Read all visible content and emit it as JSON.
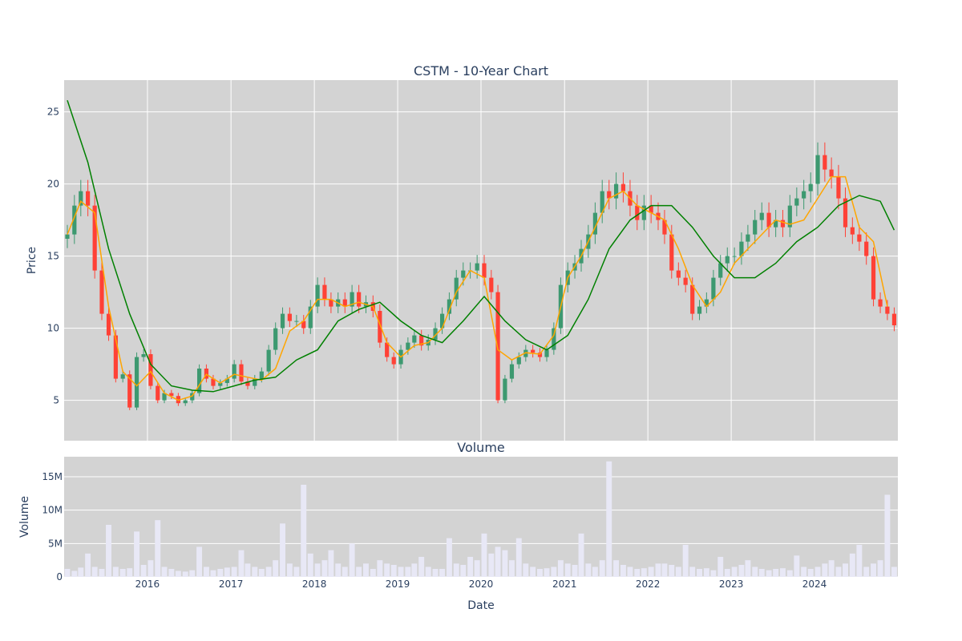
{
  "chart_data": [
    {
      "type": "candlestick",
      "title": "CSTM - 10-Year Chart",
      "ylabel": "Price",
      "ylim": [
        2.2,
        27.2
      ],
      "xlim": [
        "2015-01-01",
        "2024-12-31"
      ],
      "y_ticks": [
        5,
        10,
        15,
        20,
        25
      ],
      "grid": true,
      "background": "#d3d3d3",
      "colors": {
        "up": "#3d9970",
        "down": "#ff4136",
        "ma_short": "#ffa500",
        "ma_long": "#008000"
      },
      "series": [
        {
          "kind": "close",
          "x": [
            "2015-01",
            "2015-02",
            "2015-03",
            "2015-04",
            "2015-05",
            "2015-06",
            "2015-07",
            "2015-08",
            "2015-09",
            "2015-10",
            "2015-11",
            "2015-12",
            "2016-01",
            "2016-02",
            "2016-03",
            "2016-04",
            "2016-05",
            "2016-06",
            "2016-07",
            "2016-08",
            "2016-09",
            "2016-10",
            "2016-11",
            "2016-12",
            "2017-01",
            "2017-02",
            "2017-03",
            "2017-04",
            "2017-05",
            "2017-06",
            "2017-07",
            "2017-08",
            "2017-09",
            "2017-10",
            "2017-11",
            "2017-12",
            "2018-01",
            "2018-02",
            "2018-03",
            "2018-04",
            "2018-05",
            "2018-06",
            "2018-07",
            "2018-08",
            "2018-09",
            "2018-10",
            "2018-11",
            "2018-12",
            "2019-01",
            "2019-02",
            "2019-03",
            "2019-04",
            "2019-05",
            "2019-06",
            "2019-07",
            "2019-08",
            "2019-09",
            "2019-10",
            "2019-11",
            "2019-12",
            "2020-01",
            "2020-02",
            "2020-03",
            "2020-04",
            "2020-05",
            "2020-06",
            "2020-07",
            "2020-08",
            "2020-09",
            "2020-10",
            "2020-11",
            "2020-12",
            "2021-01",
            "2021-02",
            "2021-03",
            "2021-04",
            "2021-05",
            "2021-06",
            "2021-07",
            "2021-08",
            "2021-09",
            "2021-10",
            "2021-11",
            "2021-12",
            "2022-01",
            "2022-02",
            "2022-03",
            "2022-04",
            "2022-05",
            "2022-06",
            "2022-07",
            "2022-08",
            "2022-09",
            "2022-10",
            "2022-11",
            "2022-12",
            "2023-01",
            "2023-02",
            "2023-03",
            "2023-04",
            "2023-05",
            "2023-06",
            "2023-07",
            "2023-08",
            "2023-09",
            "2023-10",
            "2023-11",
            "2023-12",
            "2024-01",
            "2024-02",
            "2024-03",
            "2024-04",
            "2024-05",
            "2024-06",
            "2024-07",
            "2024-08",
            "2024-09",
            "2024-10",
            "2024-11",
            "2024-12"
          ],
          "values": [
            16.5,
            18.5,
            19.5,
            18.5,
            14.0,
            11.0,
            9.5,
            6.5,
            6.8,
            4.5,
            8.0,
            8.2,
            6.0,
            5.0,
            5.5,
            5.3,
            4.8,
            5.0,
            5.5,
            7.2,
            6.5,
            6.0,
            6.2,
            6.5,
            7.5,
            6.3,
            6.0,
            6.5,
            7.0,
            8.5,
            10.0,
            11.0,
            10.5,
            10.5,
            10.0,
            11.5,
            13.0,
            12.0,
            11.5,
            12.0,
            11.5,
            12.5,
            11.5,
            11.8,
            11.2,
            9.0,
            8.0,
            7.5,
            8.5,
            9.0,
            9.5,
            8.8,
            9.2,
            10.0,
            11.0,
            12.0,
            13.5,
            14.0,
            14.0,
            14.5,
            13.5,
            12.5,
            5.0,
            6.5,
            7.5,
            8.0,
            8.5,
            8.3,
            8.0,
            8.5,
            10.0,
            13.0,
            14.0,
            14.5,
            15.5,
            16.5,
            18.0,
            19.5,
            19.0,
            20.0,
            19.5,
            18.5,
            17.5,
            18.5,
            18.0,
            17.5,
            16.5,
            14.0,
            13.5,
            13.0,
            11.0,
            11.5,
            12.0,
            13.5,
            14.5,
            15.0,
            15.0,
            16.0,
            16.5,
            17.5,
            18.0,
            17.0,
            17.5,
            17.0,
            18.5,
            19.0,
            19.5,
            20.0,
            22.0,
            21.0,
            20.5,
            19.0,
            17.0,
            16.5,
            16.0,
            15.0,
            12.0,
            11.5,
            11.0,
            10.2
          ]
        },
        {
          "kind": "ma_short",
          "x": [
            "2015-01",
            "2015-03",
            "2015-05",
            "2015-07",
            "2015-09",
            "2015-11",
            "2016-01",
            "2016-03",
            "2016-05",
            "2016-07",
            "2016-09",
            "2016-11",
            "2017-01",
            "2017-03",
            "2017-05",
            "2017-07",
            "2017-09",
            "2017-11",
            "2018-01",
            "2018-03",
            "2018-05",
            "2018-07",
            "2018-09",
            "2018-11",
            "2019-01",
            "2019-03",
            "2019-05",
            "2019-07",
            "2019-09",
            "2019-11",
            "2020-01",
            "2020-03",
            "2020-05",
            "2020-07",
            "2020-09",
            "2020-11",
            "2021-01",
            "2021-03",
            "2021-05",
            "2021-07",
            "2021-09",
            "2021-11",
            "2022-01",
            "2022-03",
            "2022-05",
            "2022-07",
            "2022-09",
            "2022-11",
            "2023-01",
            "2023-03",
            "2023-05",
            "2023-07",
            "2023-09",
            "2023-11",
            "2024-01",
            "2024-03",
            "2024-05",
            "2024-07",
            "2024-09",
            "2024-11"
          ],
          "values": [
            16.5,
            18.8,
            18.0,
            11.5,
            7.0,
            6.0,
            7.0,
            5.5,
            5.0,
            5.3,
            6.8,
            6.2,
            6.8,
            6.6,
            6.4,
            7.2,
            9.8,
            10.5,
            12.0,
            12.0,
            11.5,
            11.8,
            11.5,
            9.0,
            8.0,
            8.8,
            9.0,
            10.0,
            12.5,
            14.0,
            13.5,
            8.5,
            7.8,
            8.3,
            8.2,
            9.5,
            13.5,
            15.0,
            17.0,
            19.0,
            19.5,
            18.5,
            18.0,
            17.5,
            15.5,
            13.0,
            11.5,
            12.5,
            14.5,
            15.5,
            16.5,
            17.5,
            17.2,
            17.5,
            19.0,
            20.5,
            20.5,
            17.0,
            16.0,
            11.5
          ]
        },
        {
          "kind": "ma_long",
          "x": [
            "2015-01",
            "2015-04",
            "2015-07",
            "2015-10",
            "2016-01",
            "2016-04",
            "2016-07",
            "2016-10",
            "2017-01",
            "2017-04",
            "2017-07",
            "2017-10",
            "2018-01",
            "2018-04",
            "2018-07",
            "2018-10",
            "2019-01",
            "2019-04",
            "2019-07",
            "2019-10",
            "2020-01",
            "2020-04",
            "2020-07",
            "2020-10",
            "2021-01",
            "2021-04",
            "2021-07",
            "2021-10",
            "2022-01",
            "2022-04",
            "2022-07",
            "2022-10",
            "2023-01",
            "2023-04",
            "2023-07",
            "2023-10",
            "2024-01",
            "2024-04",
            "2024-07",
            "2024-10",
            "2024-12"
          ],
          "values": [
            25.8,
            21.5,
            15.5,
            11.0,
            7.5,
            6.0,
            5.7,
            5.6,
            6.0,
            6.4,
            6.6,
            7.8,
            8.5,
            10.5,
            11.3,
            11.8,
            10.5,
            9.5,
            9.0,
            10.5,
            12.2,
            10.5,
            9.2,
            8.5,
            9.5,
            12.0,
            15.5,
            17.5,
            18.5,
            18.5,
            17.0,
            15.0,
            13.5,
            13.5,
            14.5,
            16.0,
            17.0,
            18.5,
            19.2,
            18.8,
            16.8
          ]
        }
      ]
    },
    {
      "type": "bar",
      "title": "Volume",
      "xlabel": "Date",
      "ylabel": "Volume",
      "ylim": [
        0,
        18000000
      ],
      "y_ticks": [
        0,
        5000000,
        10000000,
        15000000
      ],
      "y_tick_labels": [
        "0",
        "5M",
        "10M",
        "15M"
      ],
      "x_tick_labels": [
        "2016",
        "2017",
        "2018",
        "2019",
        "2020",
        "2021",
        "2022",
        "2023",
        "2024"
      ],
      "grid": true,
      "background": "#d3d3d3",
      "bar_color": "#e8e8f6",
      "series": [
        {
          "x": [
            "2015-01",
            "2015-02",
            "2015-03",
            "2015-04",
            "2015-05",
            "2015-06",
            "2015-07",
            "2015-08",
            "2015-09",
            "2015-10",
            "2015-11",
            "2015-12",
            "2016-01",
            "2016-02",
            "2016-03",
            "2016-04",
            "2016-05",
            "2016-06",
            "2016-07",
            "2016-08",
            "2016-09",
            "2016-10",
            "2016-11",
            "2016-12",
            "2017-01",
            "2017-02",
            "2017-03",
            "2017-04",
            "2017-05",
            "2017-06",
            "2017-07",
            "2017-08",
            "2017-09",
            "2017-10",
            "2017-11",
            "2017-12",
            "2018-01",
            "2018-02",
            "2018-03",
            "2018-04",
            "2018-05",
            "2018-06",
            "2018-07",
            "2018-08",
            "2018-09",
            "2018-10",
            "2018-11",
            "2018-12",
            "2019-01",
            "2019-02",
            "2019-03",
            "2019-04",
            "2019-05",
            "2019-06",
            "2019-07",
            "2019-08",
            "2019-09",
            "2019-10",
            "2019-11",
            "2019-12",
            "2020-01",
            "2020-02",
            "2020-03",
            "2020-04",
            "2020-05",
            "2020-06",
            "2020-07",
            "2020-08",
            "2020-09",
            "2020-10",
            "2020-11",
            "2020-12",
            "2021-01",
            "2021-02",
            "2021-03",
            "2021-04",
            "2021-05",
            "2021-06",
            "2021-07",
            "2021-08",
            "2021-09",
            "2021-10",
            "2021-11",
            "2021-12",
            "2022-01",
            "2022-02",
            "2022-03",
            "2022-04",
            "2022-05",
            "2022-06",
            "2022-07",
            "2022-08",
            "2022-09",
            "2022-10",
            "2022-11",
            "2022-12",
            "2023-01",
            "2023-02",
            "2023-03",
            "2023-04",
            "2023-05",
            "2023-06",
            "2023-07",
            "2023-08",
            "2023-09",
            "2023-10",
            "2023-11",
            "2023-12",
            "2024-01",
            "2024-02",
            "2024-03",
            "2024-04",
            "2024-05",
            "2024-06",
            "2024-07",
            "2024-08",
            "2024-09",
            "2024-10",
            "2024-11",
            "2024-12"
          ],
          "values": [
            1200000,
            900000,
            1400000,
            3500000,
            1500000,
            1200000,
            7800000,
            1500000,
            1200000,
            1300000,
            6800000,
            1800000,
            2500000,
            8500000,
            1500000,
            1200000,
            900000,
            800000,
            1000000,
            4500000,
            1500000,
            1000000,
            1200000,
            1400000,
            1500000,
            4000000,
            2000000,
            1500000,
            1200000,
            1500000,
            2500000,
            8000000,
            2000000,
            1500000,
            13800000,
            3500000,
            2000000,
            2500000,
            4000000,
            2000000,
            1500000,
            5000000,
            1500000,
            2000000,
            1200000,
            2500000,
            2000000,
            1800000,
            1500000,
            1500000,
            2000000,
            3000000,
            1500000,
            1200000,
            1200000,
            5800000,
            2000000,
            1800000,
            3000000,
            2500000,
            6500000,
            3500000,
            4500000,
            4000000,
            2500000,
            5800000,
            2000000,
            1500000,
            1200000,
            1300000,
            1500000,
            2500000,
            2000000,
            1800000,
            6500000,
            2000000,
            1500000,
            2500000,
            17300000,
            2500000,
            1800000,
            1500000,
            1200000,
            1300000,
            1500000,
            2000000,
            2000000,
            1800000,
            1500000,
            4800000,
            1500000,
            1200000,
            1300000,
            1000000,
            3000000,
            1200000,
            1500000,
            1800000,
            2500000,
            1500000,
            1200000,
            1000000,
            1200000,
            1300000,
            1000000,
            3200000,
            1500000,
            1200000,
            1500000,
            2000000,
            2500000,
            1500000,
            2000000,
            3500000,
            4800000,
            1500000,
            2000000,
            2500000,
            12300000,
            1500000
          ]
        }
      ]
    }
  ]
}
